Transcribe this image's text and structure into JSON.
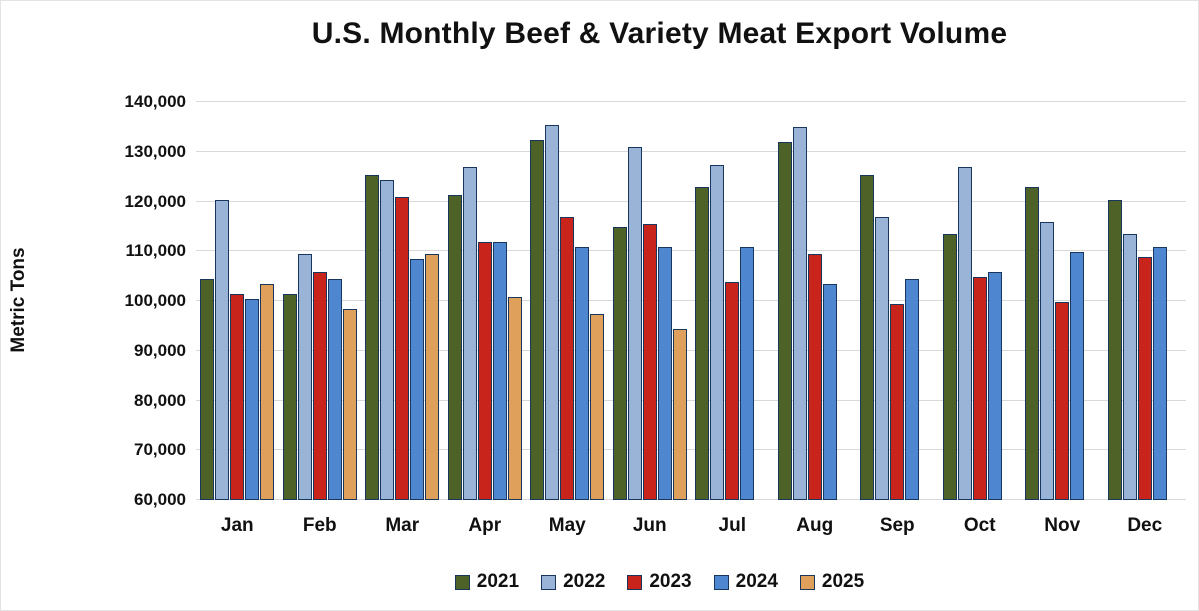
{
  "chart_data": {
    "type": "bar",
    "title": "U.S. Monthly Beef & Variety Meat Export Volume",
    "xlabel": "",
    "ylabel": "Metric Tons",
    "ylim": [
      60000,
      140000
    ],
    "ytick_step": 10000,
    "grid": true,
    "legend_position": "bottom",
    "bar_border_color": "#17375e",
    "gridline_color": "#d9d9d9",
    "categories": [
      "Jan",
      "Feb",
      "Mar",
      "Apr",
      "May",
      "Jun",
      "Jul",
      "Aug",
      "Sep",
      "Oct",
      "Nov",
      "Dec"
    ],
    "series": [
      {
        "name": "2021",
        "color": "#4e6227",
        "values": [
          104000,
          101000,
          125000,
          121000,
          132000,
          114500,
          122500,
          131500,
          125000,
          113000,
          122500,
          120000
        ]
      },
      {
        "name": "2022",
        "color": "#99b4d6",
        "values": [
          120000,
          109000,
          124000,
          126500,
          135000,
          130500,
          127000,
          134500,
          116500,
          126500,
          115500,
          113000
        ]
      },
      {
        "name": "2023",
        "color": "#c9241b",
        "values": [
          101000,
          105500,
          120500,
          111500,
          116500,
          115000,
          103500,
          109000,
          99000,
          104500,
          99500,
          108500
        ]
      },
      {
        "name": "2024",
        "color": "#4e86d0",
        "values": [
          100000,
          104000,
          108000,
          111500,
          110500,
          110500,
          110500,
          103000,
          104000,
          105500,
          109500,
          110500
        ]
      },
      {
        "name": "2025",
        "color": "#dfa05c",
        "values": [
          103000,
          98000,
          109000,
          100500,
          97000,
          94000,
          null,
          null,
          null,
          null,
          null,
          null
        ]
      }
    ]
  }
}
